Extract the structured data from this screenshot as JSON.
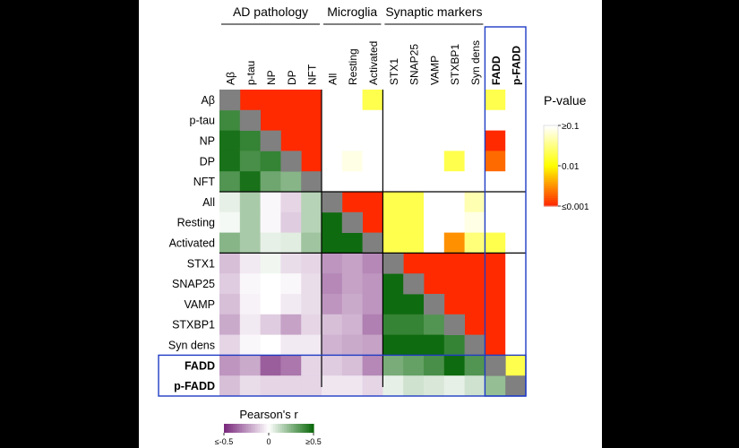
{
  "chart_data": {
    "type": "heatmap",
    "variables": [
      "Aβ",
      "p-tau",
      "NP",
      "DP",
      "NFT",
      "All",
      "Resting",
      "Activated",
      "STX1",
      "SNAP25",
      "VAMP",
      "STXBP1",
      "Syn dens",
      "FADD",
      "p-FADD"
    ],
    "highlight_variables": [
      "FADD",
      "p-FADD"
    ],
    "groups": [
      {
        "label": "AD pathology",
        "members": [
          "Aβ",
          "p-tau",
          "NP",
          "DP",
          "NFT"
        ]
      },
      {
        "label": "Microglia",
        "members": [
          "All",
          "Resting",
          "Activated"
        ]
      },
      {
        "label": "Synaptic markers",
        "members": [
          "STX1",
          "SNAP25",
          "VAMP",
          "STXBP1",
          "Syn dens"
        ]
      }
    ],
    "lower_triangle": {
      "quantity": "Pearson's r",
      "rows": [
        [
          null,
          null,
          null,
          null,
          null,
          null,
          null,
          null,
          null,
          null,
          null,
          null,
          null,
          null,
          null
        ],
        [
          0.4,
          null,
          null,
          null,
          null,
          null,
          null,
          null,
          null,
          null,
          null,
          null,
          null,
          null,
          null
        ],
        [
          0.48,
          0.42,
          null,
          null,
          null,
          null,
          null,
          null,
          null,
          null,
          null,
          null,
          null,
          null,
          null
        ],
        [
          0.48,
          0.38,
          0.42,
          null,
          null,
          null,
          null,
          null,
          null,
          null,
          null,
          null,
          null,
          null,
          null
        ],
        [
          0.36,
          0.48,
          0.3,
          0.25,
          null,
          null,
          null,
          null,
          null,
          null,
          null,
          null,
          null,
          null,
          null
        ],
        [
          0.05,
          0.18,
          -0.02,
          -0.1,
          0.15,
          null,
          null,
          null,
          null,
          null,
          null,
          null,
          null,
          null,
          null
        ],
        [
          0.02,
          0.18,
          -0.02,
          -0.12,
          0.15,
          0.5,
          null,
          null,
          null,
          null,
          null,
          null,
          null,
          null,
          null
        ],
        [
          0.25,
          0.18,
          0.05,
          0.06,
          0.2,
          0.5,
          0.5,
          null,
          null,
          null,
          null,
          null,
          null,
          null,
          null
        ],
        [
          -0.15,
          -0.05,
          0.03,
          -0.08,
          -0.1,
          -0.25,
          -0.22,
          -0.28,
          null,
          null,
          null,
          null,
          null,
          null,
          null
        ],
        [
          -0.12,
          -0.02,
          0.0,
          -0.02,
          -0.08,
          -0.28,
          -0.22,
          -0.25,
          0.5,
          null,
          null,
          null,
          null,
          null,
          null
        ],
        [
          -0.15,
          -0.03,
          0.0,
          -0.05,
          -0.08,
          -0.25,
          -0.2,
          -0.25,
          0.5,
          0.5,
          null,
          null,
          null,
          null,
          null
        ],
        [
          -0.2,
          -0.05,
          -0.12,
          -0.22,
          -0.1,
          -0.15,
          -0.18,
          -0.3,
          0.42,
          0.42,
          0.36,
          null,
          null,
          null,
          null
        ],
        [
          -0.1,
          -0.02,
          0.0,
          -0.05,
          -0.05,
          -0.18,
          -0.2,
          -0.22,
          0.5,
          0.5,
          0.5,
          0.42,
          null,
          null,
          null
        ],
        [
          -0.25,
          -0.2,
          -0.38,
          -0.32,
          -0.1,
          -0.12,
          -0.15,
          -0.28,
          0.28,
          0.32,
          0.38,
          0.5,
          0.36,
          null,
          null
        ],
        [
          -0.15,
          -0.08,
          -0.1,
          -0.1,
          -0.1,
          -0.06,
          -0.06,
          -0.1,
          0.05,
          0.1,
          0.08,
          0.05,
          0.1,
          0.22,
          null
        ]
      ]
    },
    "upper_triangle": {
      "quantity": "P-value",
      "rows": [
        [
          null,
          0.0005,
          0.0005,
          0.0005,
          0.0005,
          0.2,
          0.2,
          0.02,
          0.2,
          0.2,
          0.2,
          0.2,
          0.2,
          0.02,
          0.2
        ],
        [
          null,
          null,
          0.0005,
          0.0005,
          0.0005,
          0.2,
          0.2,
          0.2,
          0.2,
          0.2,
          0.2,
          0.2,
          0.2,
          0.2,
          0.2
        ],
        [
          null,
          null,
          null,
          0.0005,
          0.0005,
          0.2,
          0.2,
          0.2,
          0.2,
          0.2,
          0.2,
          0.2,
          0.2,
          0.0005,
          0.2
        ],
        [
          null,
          null,
          null,
          null,
          0.0005,
          0.2,
          0.08,
          0.2,
          0.2,
          0.2,
          0.2,
          0.02,
          0.2,
          0.002,
          0.2
        ],
        [
          null,
          null,
          null,
          null,
          null,
          0.2,
          0.2,
          0.2,
          0.2,
          0.2,
          0.2,
          0.2,
          0.2,
          0.2,
          0.2
        ],
        [
          null,
          null,
          null,
          null,
          null,
          null,
          0.0005,
          0.0005,
          0.02,
          0.02,
          0.2,
          0.2,
          0.05,
          0.2,
          0.2
        ],
        [
          null,
          null,
          null,
          null,
          null,
          null,
          null,
          0.0005,
          0.02,
          0.02,
          0.2,
          0.2,
          0.08,
          0.2,
          0.2
        ],
        [
          null,
          null,
          null,
          null,
          null,
          null,
          null,
          null,
          0.02,
          0.02,
          0.2,
          0.003,
          0.03,
          0.02,
          0.2
        ],
        [
          null,
          null,
          null,
          null,
          null,
          null,
          null,
          null,
          null,
          0.0005,
          0.0005,
          0.0005,
          0.0005,
          0.0005,
          0.2
        ],
        [
          null,
          null,
          null,
          null,
          null,
          null,
          null,
          null,
          null,
          null,
          0.0005,
          0.0005,
          0.0005,
          0.0005,
          0.2
        ],
        [
          null,
          null,
          null,
          null,
          null,
          null,
          null,
          null,
          null,
          null,
          null,
          0.0005,
          0.0005,
          0.0005,
          0.2
        ],
        [
          null,
          null,
          null,
          null,
          null,
          null,
          null,
          null,
          null,
          null,
          null,
          null,
          0.0005,
          0.0005,
          0.2
        ],
        [
          null,
          null,
          null,
          null,
          null,
          null,
          null,
          null,
          null,
          null,
          null,
          null,
          null,
          0.0005,
          0.2
        ],
        [
          null,
          null,
          null,
          null,
          null,
          null,
          null,
          null,
          null,
          null,
          null,
          null,
          null,
          null,
          0.02
        ],
        [
          null,
          null,
          null,
          null,
          null,
          null,
          null,
          null,
          null,
          null,
          null,
          null,
          null,
          null,
          null
        ]
      ]
    },
    "legend_pvalue": {
      "title": "P-value",
      "tick_labels": [
        "≥0.1",
        "0.01",
        "≤0.001"
      ],
      "colors": [
        "#ffffff",
        "#ffff00",
        "#ff2a00"
      ]
    },
    "legend_pearson": {
      "title": "Pearson's r",
      "tick_labels": [
        "≤-0.5",
        "0",
        "≥0.5"
      ],
      "colors": [
        "#7b2b7e",
        "#ffffff",
        "#0f6b0f"
      ]
    },
    "diagonal_color": "#808080",
    "highlight_color": "#1f3cc4"
  }
}
